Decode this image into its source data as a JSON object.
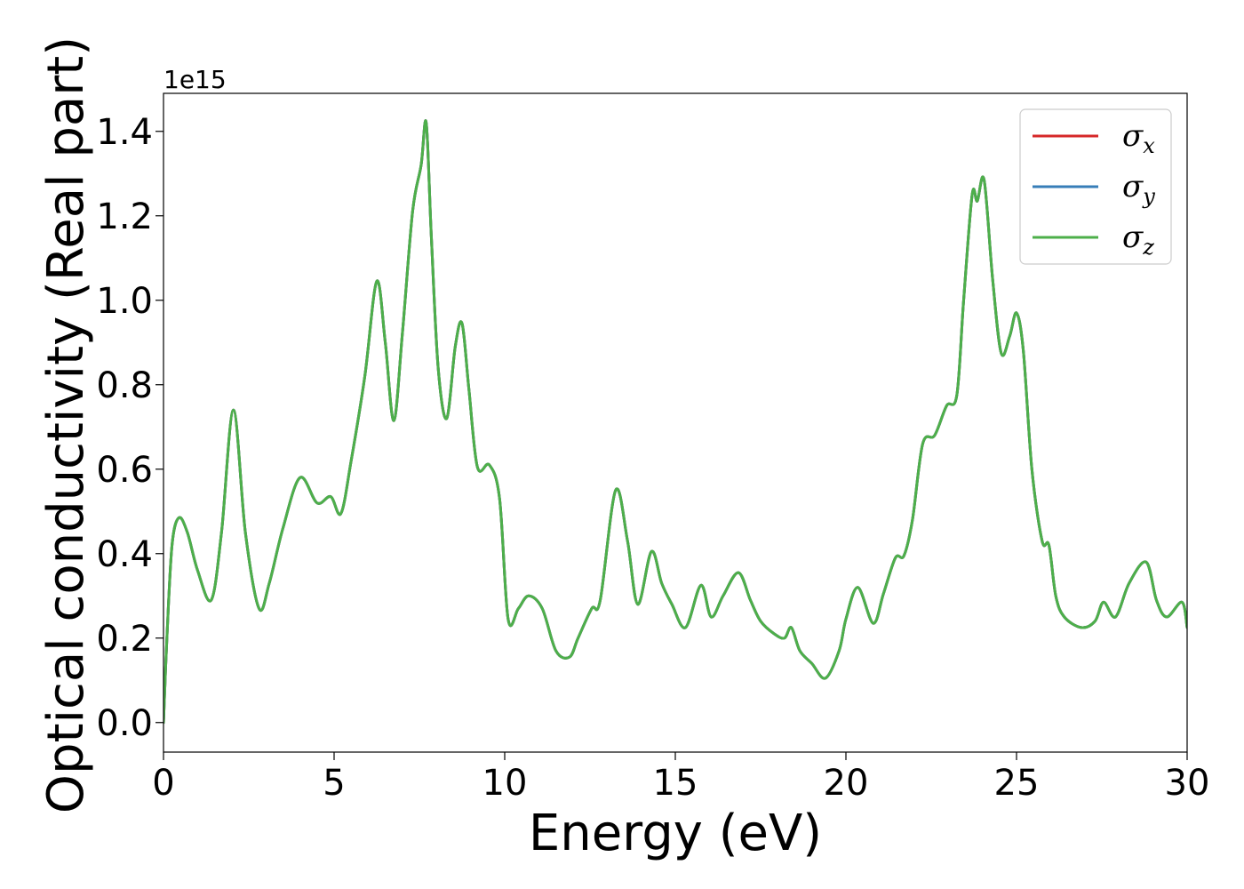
{
  "chart_data": {
    "type": "line",
    "title": "",
    "xlabel": "Energy (eV)",
    "ylabel": "Optical conductivity (Real part)",
    "y_offset_label": "1e15",
    "xlim": [
      0,
      30
    ],
    "ylim": [
      -0.07,
      1.49
    ],
    "x_ticks": [
      0,
      5,
      10,
      15,
      20,
      25,
      30
    ],
    "x_tick_labels": [
      "0",
      "5",
      "10",
      "15",
      "20",
      "25",
      "30"
    ],
    "y_ticks": [
      0.0,
      0.2,
      0.4,
      0.6,
      0.8,
      1.0,
      1.2,
      1.4
    ],
    "y_tick_labels": [
      "0.0",
      "0.2",
      "0.4",
      "0.6",
      "0.8",
      "1.0",
      "1.2",
      "1.4"
    ],
    "grid": false,
    "legend_position": "top-right",
    "series": [
      {
        "name": "σx",
        "label_base": "σ",
        "label_sub": "x",
        "color": "#d62728",
        "x": [
          0,
          0.1,
          0.25,
          0.45,
          0.7,
          1.0,
          1.4,
          1.7,
          2.05,
          2.4,
          2.8,
          3.1,
          3.5,
          4.0,
          4.5,
          4.9,
          5.2,
          5.5,
          5.9,
          6.25,
          6.5,
          6.75,
          7.0,
          7.3,
          7.55,
          7.7,
          7.85,
          8.05,
          8.3,
          8.55,
          8.75,
          8.95,
          9.2,
          9.55,
          9.85,
          10.1,
          10.4,
          10.7,
          11.1,
          11.5,
          11.9,
          12.15,
          12.55,
          12.8,
          13.25,
          13.6,
          13.9,
          14.3,
          14.6,
          14.9,
          15.3,
          15.75,
          16.05,
          16.4,
          16.85,
          17.2,
          17.5,
          17.9,
          18.2,
          18.4,
          18.65,
          19.0,
          19.4,
          19.8,
          20.0,
          20.35,
          20.8,
          21.1,
          21.45,
          21.7,
          21.95,
          22.25,
          22.6,
          22.95,
          23.25,
          23.45,
          23.7,
          23.85,
          24.05,
          24.3,
          24.55,
          24.8,
          25.0,
          25.2,
          25.45,
          25.75,
          25.95,
          26.15,
          26.4,
          26.9,
          27.3,
          27.55,
          27.9,
          28.3,
          28.8,
          29.1,
          29.4,
          29.85,
          30.0
        ],
        "values": [
          0.0,
          0.2,
          0.42,
          0.485,
          0.45,
          0.36,
          0.29,
          0.45,
          0.74,
          0.45,
          0.27,
          0.33,
          0.46,
          0.58,
          0.52,
          0.535,
          0.495,
          0.62,
          0.82,
          1.045,
          0.9,
          0.715,
          0.92,
          1.21,
          1.32,
          1.42,
          1.15,
          0.84,
          0.72,
          0.89,
          0.945,
          0.79,
          0.605,
          0.61,
          0.53,
          0.245,
          0.27,
          0.3,
          0.27,
          0.17,
          0.155,
          0.2,
          0.27,
          0.29,
          0.55,
          0.43,
          0.28,
          0.405,
          0.33,
          0.28,
          0.225,
          0.325,
          0.25,
          0.3,
          0.355,
          0.29,
          0.24,
          0.21,
          0.2,
          0.225,
          0.17,
          0.14,
          0.105,
          0.17,
          0.245,
          0.32,
          0.235,
          0.305,
          0.39,
          0.395,
          0.48,
          0.66,
          0.68,
          0.75,
          0.775,
          1.0,
          1.25,
          1.235,
          1.285,
          1.05,
          0.875,
          0.915,
          0.97,
          0.88,
          0.6,
          0.43,
          0.42,
          0.3,
          0.25,
          0.225,
          0.24,
          0.285,
          0.25,
          0.33,
          0.38,
          0.29,
          0.25,
          0.285,
          0.225
        ]
      },
      {
        "name": "σy",
        "label_base": "σ",
        "label_sub": "y",
        "color": "#377eb8",
        "x": [
          0,
          0.1,
          0.25,
          0.45,
          0.7,
          1.0,
          1.4,
          1.7,
          2.05,
          2.4,
          2.8,
          3.1,
          3.5,
          4.0,
          4.5,
          4.9,
          5.2,
          5.5,
          5.9,
          6.25,
          6.5,
          6.75,
          7.0,
          7.3,
          7.55,
          7.7,
          7.85,
          8.05,
          8.3,
          8.55,
          8.75,
          8.95,
          9.2,
          9.55,
          9.85,
          10.1,
          10.4,
          10.7,
          11.1,
          11.5,
          11.9,
          12.15,
          12.55,
          12.8,
          13.25,
          13.6,
          13.9,
          14.3,
          14.6,
          14.9,
          15.3,
          15.75,
          16.05,
          16.4,
          16.85,
          17.2,
          17.5,
          17.9,
          18.2,
          18.4,
          18.65,
          19.0,
          19.4,
          19.8,
          20.0,
          20.35,
          20.8,
          21.1,
          21.45,
          21.7,
          21.95,
          22.25,
          22.6,
          22.95,
          23.25,
          23.45,
          23.7,
          23.85,
          24.05,
          24.3,
          24.55,
          24.8,
          25.0,
          25.2,
          25.45,
          25.75,
          25.95,
          26.15,
          26.4,
          26.9,
          27.3,
          27.55,
          27.9,
          28.3,
          28.8,
          29.1,
          29.4,
          29.85,
          30.0
        ],
        "values": [
          0.0,
          0.2,
          0.42,
          0.485,
          0.45,
          0.36,
          0.29,
          0.45,
          0.74,
          0.45,
          0.27,
          0.33,
          0.46,
          0.58,
          0.52,
          0.535,
          0.495,
          0.62,
          0.82,
          1.045,
          0.9,
          0.715,
          0.92,
          1.21,
          1.32,
          1.42,
          1.15,
          0.84,
          0.72,
          0.89,
          0.945,
          0.79,
          0.605,
          0.61,
          0.53,
          0.245,
          0.27,
          0.3,
          0.27,
          0.17,
          0.155,
          0.2,
          0.27,
          0.29,
          0.55,
          0.43,
          0.28,
          0.405,
          0.33,
          0.28,
          0.225,
          0.325,
          0.25,
          0.3,
          0.355,
          0.29,
          0.24,
          0.21,
          0.2,
          0.225,
          0.17,
          0.14,
          0.105,
          0.17,
          0.245,
          0.32,
          0.235,
          0.305,
          0.39,
          0.395,
          0.48,
          0.66,
          0.68,
          0.75,
          0.775,
          1.0,
          1.25,
          1.235,
          1.285,
          1.05,
          0.875,
          0.915,
          0.97,
          0.88,
          0.6,
          0.43,
          0.42,
          0.3,
          0.25,
          0.225,
          0.24,
          0.285,
          0.25,
          0.33,
          0.38,
          0.29,
          0.25,
          0.285,
          0.225
        ]
      },
      {
        "name": "σz",
        "label_base": "σ",
        "label_sub": "z",
        "color": "#4daf4a",
        "x": [
          0,
          0.1,
          0.25,
          0.45,
          0.7,
          1.0,
          1.4,
          1.7,
          2.05,
          2.4,
          2.8,
          3.1,
          3.5,
          4.0,
          4.5,
          4.9,
          5.2,
          5.5,
          5.9,
          6.25,
          6.5,
          6.75,
          7.0,
          7.3,
          7.55,
          7.7,
          7.85,
          8.05,
          8.3,
          8.55,
          8.75,
          8.95,
          9.2,
          9.55,
          9.85,
          10.1,
          10.4,
          10.7,
          11.1,
          11.5,
          11.9,
          12.15,
          12.55,
          12.8,
          13.25,
          13.6,
          13.9,
          14.3,
          14.6,
          14.9,
          15.3,
          15.75,
          16.05,
          16.4,
          16.85,
          17.2,
          17.5,
          17.9,
          18.2,
          18.4,
          18.65,
          19.0,
          19.4,
          19.8,
          20.0,
          20.35,
          20.8,
          21.1,
          21.45,
          21.7,
          21.95,
          22.25,
          22.6,
          22.95,
          23.25,
          23.45,
          23.7,
          23.85,
          24.05,
          24.3,
          24.55,
          24.8,
          25.0,
          25.2,
          25.45,
          25.75,
          25.95,
          26.15,
          26.4,
          26.9,
          27.3,
          27.55,
          27.9,
          28.3,
          28.8,
          29.1,
          29.4,
          29.85,
          30.0
        ],
        "values": [
          0.0,
          0.2,
          0.42,
          0.485,
          0.45,
          0.36,
          0.29,
          0.45,
          0.74,
          0.45,
          0.27,
          0.33,
          0.46,
          0.58,
          0.52,
          0.535,
          0.495,
          0.62,
          0.82,
          1.045,
          0.9,
          0.715,
          0.92,
          1.21,
          1.32,
          1.42,
          1.15,
          0.84,
          0.72,
          0.89,
          0.945,
          0.79,
          0.605,
          0.61,
          0.53,
          0.245,
          0.27,
          0.3,
          0.27,
          0.17,
          0.155,
          0.2,
          0.27,
          0.29,
          0.55,
          0.43,
          0.28,
          0.405,
          0.33,
          0.28,
          0.225,
          0.325,
          0.25,
          0.3,
          0.355,
          0.29,
          0.24,
          0.21,
          0.2,
          0.225,
          0.17,
          0.14,
          0.105,
          0.17,
          0.245,
          0.32,
          0.235,
          0.305,
          0.39,
          0.395,
          0.48,
          0.66,
          0.68,
          0.75,
          0.775,
          1.0,
          1.25,
          1.235,
          1.285,
          1.05,
          0.875,
          0.915,
          0.97,
          0.88,
          0.6,
          0.43,
          0.42,
          0.3,
          0.25,
          0.225,
          0.24,
          0.285,
          0.25,
          0.33,
          0.38,
          0.29,
          0.25,
          0.285,
          0.225
        ]
      }
    ]
  }
}
